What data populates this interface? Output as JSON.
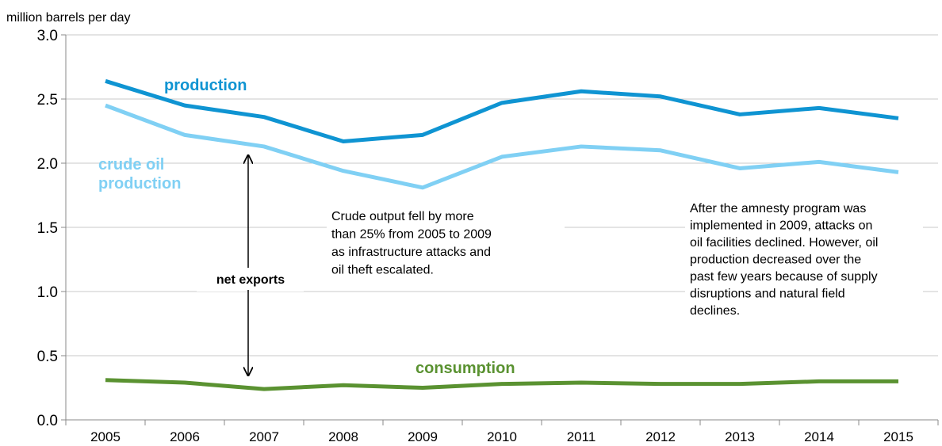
{
  "chart_data": {
    "type": "line",
    "y_label": "million barrels per day",
    "categories": [
      "2005",
      "2006",
      "2007",
      "2008",
      "2009",
      "2010",
      "2011",
      "2012",
      "2013",
      "2014",
      "2015"
    ],
    "series": [
      {
        "name": "production",
        "color": "#0f94d2",
        "values": [
          2.64,
          2.45,
          2.36,
          2.17,
          2.22,
          2.47,
          2.56,
          2.52,
          2.38,
          2.43,
          2.35
        ]
      },
      {
        "name": "crude oil production",
        "color": "#80d0f4",
        "values": [
          2.45,
          2.22,
          2.13,
          1.94,
          1.81,
          2.05,
          2.13,
          2.1,
          1.96,
          2.01,
          1.93
        ]
      },
      {
        "name": "consumption",
        "color": "#5a9231",
        "values": [
          0.31,
          0.29,
          0.24,
          0.27,
          0.25,
          0.28,
          0.29,
          0.28,
          0.28,
          0.3,
          0.3
        ]
      }
    ],
    "ylim": [
      0,
      3
    ],
    "yticks": [
      {
        "value": 0,
        "label": "0.0"
      },
      {
        "value": 0.5,
        "label": "0.5"
      },
      {
        "value": 1,
        "label": "1.0"
      },
      {
        "value": 1.5,
        "label": "1.5"
      },
      {
        "value": 2,
        "label": "2.0"
      },
      {
        "value": 2.5,
        "label": "2.5"
      },
      {
        "value": 3,
        "label": "3.0"
      }
    ],
    "grid": true,
    "annotations": [
      {
        "text": "net exports"
      },
      {
        "lines": [
          "Crude output fell by more",
          "than 25% from 2005 to 2009",
          "as infrastructure attacks and",
          "oil theft escalated."
        ]
      },
      {
        "lines": [
          "After the amnesty program was",
          "implemented in 2009, attacks on",
          "oil facilities declined. However, oil",
          "production decreased over the",
          "past few years because of supply",
          "disruptions and natural field",
          "declines."
        ]
      }
    ]
  }
}
